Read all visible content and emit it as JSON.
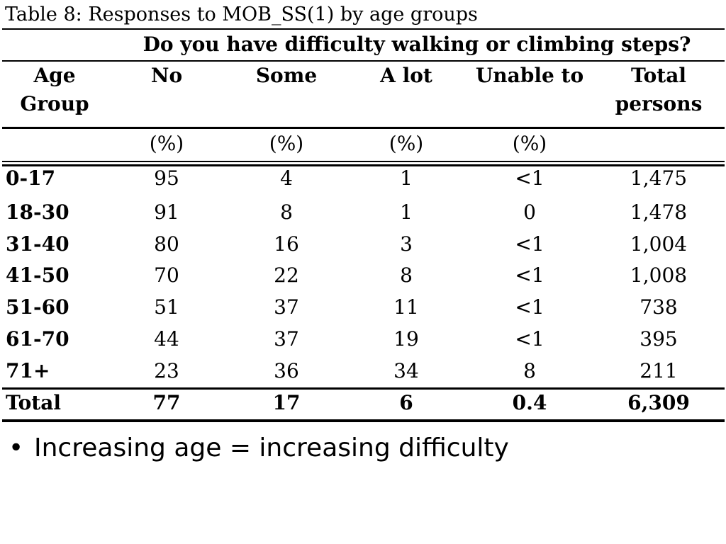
{
  "caption": "Table 8: Responses to MOB_SS(1) by age groups",
  "table": {
    "question": "Do you have difficulty walking or climbing steps?",
    "headers": {
      "age_group_line1": "Age",
      "age_group_line2": "Group",
      "no": "No",
      "some": "Some",
      "a_lot": "A lot",
      "unable_to": "Unable to",
      "total_line1": "Total",
      "total_line2": "persons"
    },
    "units": [
      "(%)",
      "(%)",
      "(%)",
      "(%)"
    ],
    "rows": [
      {
        "age": "0-17",
        "no": "95",
        "some": "4",
        "a_lot": "1",
        "unable": "<1",
        "total": "1,475"
      },
      {
        "age": "18-30",
        "no": "91",
        "some": "8",
        "a_lot": "1",
        "unable": "0",
        "total": "1,478"
      },
      {
        "age": "31-40",
        "no": "80",
        "some": "16",
        "a_lot": "3",
        "unable": "<1",
        "total": "1,004"
      },
      {
        "age": "41-50",
        "no": "70",
        "some": "22",
        "a_lot": "8",
        "unable": "<1",
        "total": "1,008"
      },
      {
        "age": "51-60",
        "no": "51",
        "some": "37",
        "a_lot": "11",
        "unable": "<1",
        "total": "738"
      },
      {
        "age": "61-70",
        "no": "44",
        "some": "37",
        "a_lot": "19",
        "unable": "<1",
        "total": "395"
      },
      {
        "age": "71+",
        "no": "23",
        "some": "36",
        "a_lot": "34",
        "unable": "8",
        "total": "211"
      }
    ],
    "totals": {
      "label": "Total",
      "no": "77",
      "some": "17",
      "a_lot": "6",
      "unable": "0.4",
      "total": "6,309"
    }
  },
  "bullet": {
    "symbol": "•",
    "text": "Increasing age = increasing difficulty"
  }
}
